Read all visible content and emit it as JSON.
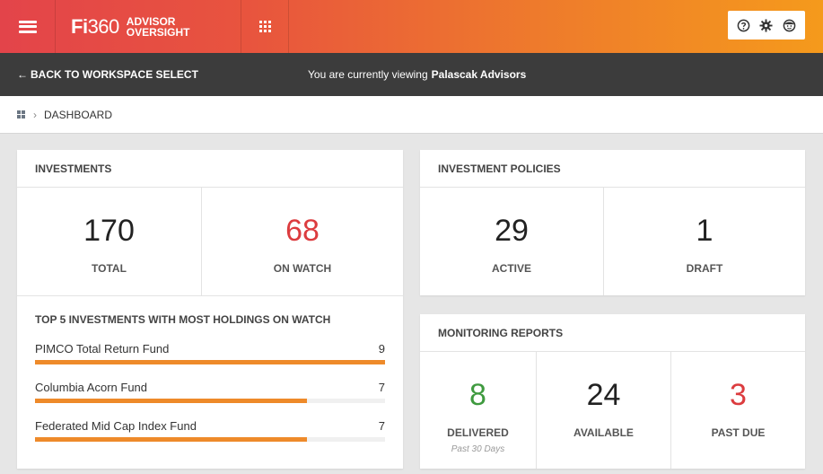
{
  "header": {
    "logo_main": "Fi",
    "logo_num": "360",
    "brand_line1": "ADVISOR",
    "brand_line2": "OVERSIGHT",
    "menu_icon": "hamburger-icon",
    "apps_icon": "grid-icon",
    "utility_icons": [
      "help-icon",
      "gear-icon",
      "user-icon"
    ],
    "accent_start": "#e3444a",
    "accent_end": "#f59a1c"
  },
  "subbar": {
    "back_label": "BACK TO WORKSPACE SELECT",
    "viewing_prefix": "You are currently viewing",
    "viewing_name": "Palascak Advisors"
  },
  "breadcrumb": {
    "home_icon": "dashboard-icon",
    "current": "DASHBOARD"
  },
  "investments": {
    "title": "INVESTMENTS",
    "stats": [
      {
        "value": "170",
        "label": "TOTAL"
      },
      {
        "value": "68",
        "label": "ON WATCH"
      }
    ],
    "top5_title": "TOP 5 INVESTMENTS WITH MOST HOLDINGS ON WATCH",
    "top5": [
      {
        "name": "PIMCO Total Return Fund",
        "count": "9",
        "fraction": 1.0
      },
      {
        "name": "Columbia Acorn Fund",
        "count": "7",
        "fraction": 0.778
      },
      {
        "name": "Federated Mid Cap Index Fund",
        "count": "7",
        "fraction": 0.778
      }
    ]
  },
  "policies": {
    "title": "INVESTMENT POLICIES",
    "stats": [
      {
        "value": "29",
        "label": "ACTIVE"
      },
      {
        "value": "1",
        "label": "DRAFT"
      }
    ]
  },
  "reports": {
    "title": "MONITORING REPORTS",
    "stats": [
      {
        "value": "8",
        "label": "DELIVERED",
        "sub": "Past 30 Days"
      },
      {
        "value": "24",
        "label": "AVAILABLE"
      },
      {
        "value": "3",
        "label": "PAST DUE"
      }
    ]
  },
  "colors": {
    "watch_red": "#dc3c3f",
    "delivered_green": "#3f9a3f",
    "bar_orange": "#ee8a2a"
  }
}
